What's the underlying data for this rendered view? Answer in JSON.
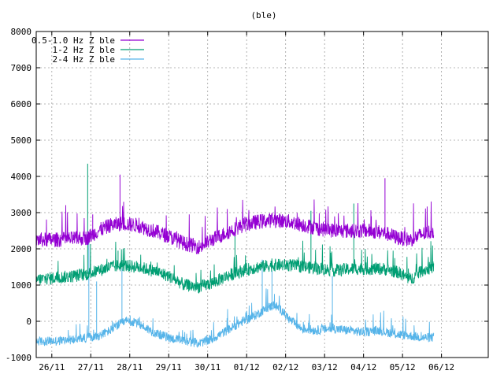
{
  "chart_data": {
    "type": "line",
    "title": "(ble)",
    "xlabel": "",
    "ylabel": "",
    "ylim": [
      -1000,
      8000
    ],
    "yticks": [
      -1000,
      0,
      1000,
      2000,
      3000,
      4000,
      5000,
      6000,
      7000,
      8000
    ],
    "xlim": [
      0,
      11.6
    ],
    "xticks": [
      {
        "label": "26/11",
        "x": 0.4
      },
      {
        "label": "27/11",
        "x": 1.4
      },
      {
        "label": "28/11",
        "x": 2.4
      },
      {
        "label": "29/11",
        "x": 3.4
      },
      {
        "label": "30/11",
        "x": 4.4
      },
      {
        "label": "01/12",
        "x": 5.4
      },
      {
        "label": "02/12",
        "x": 6.4
      },
      {
        "label": "03/12",
        "x": 7.4
      },
      {
        "label": "04/12",
        "x": 8.4
      },
      {
        "label": "05/12",
        "x": 9.4
      },
      {
        "label": "06/12",
        "x": 10.4
      }
    ],
    "grid": true,
    "legend_position": "top-left",
    "series": [
      {
        "name": "0.5-1.0 Hz Z ble",
        "color": "#9400d3",
        "noise": 260,
        "x": [
          0,
          0.5,
          1.0,
          1.3,
          1.6,
          1.9,
          2.2,
          2.6,
          3.0,
          3.4,
          3.8,
          4.2,
          4.5,
          4.9,
          5.3,
          5.7,
          6.1,
          6.5,
          6.9,
          7.3,
          7.7,
          8.1,
          8.5,
          8.9,
          9.3,
          9.6,
          9.9,
          10.2
        ],
        "values": [
          2250,
          2250,
          2280,
          2300,
          2500,
          2650,
          2700,
          2650,
          2500,
          2350,
          2150,
          2050,
          2250,
          2450,
          2650,
          2750,
          2800,
          2750,
          2650,
          2550,
          2500,
          2500,
          2500,
          2450,
          2300,
          2250,
          2400,
          2500
        ],
        "spikes": [
          {
            "x": 1.45,
            "v": 2950
          },
          {
            "x": 2.15,
            "v": 4050
          },
          {
            "x": 8.95,
            "v": 3950
          },
          {
            "x": 8.6,
            "v": 2900
          }
        ]
      },
      {
        "name": "1-2 Hz Z ble",
        "color": "#009e73",
        "noise": 220,
        "x": [
          0,
          0.5,
          1.0,
          1.3,
          1.6,
          1.9,
          2.2,
          2.6,
          3.0,
          3.4,
          3.8,
          4.2,
          4.5,
          4.9,
          5.3,
          5.7,
          6.1,
          6.5,
          6.9,
          7.3,
          7.7,
          8.1,
          8.5,
          8.9,
          9.3,
          9.6,
          9.9,
          10.2
        ],
        "values": [
          1150,
          1200,
          1250,
          1300,
          1400,
          1500,
          1550,
          1500,
          1400,
          1250,
          1000,
          950,
          1050,
          1250,
          1400,
          1500,
          1550,
          1550,
          1500,
          1450,
          1400,
          1450,
          1450,
          1450,
          1350,
          1150,
          1400,
          1500
        ],
        "spikes": [
          {
            "x": 1.32,
            "v": 4350
          },
          {
            "x": 2.1,
            "v": 1950
          },
          {
            "x": 5.1,
            "v": 2500
          },
          {
            "x": 8.15,
            "v": 3250
          },
          {
            "x": 7.05,
            "v": 3050
          }
        ]
      },
      {
        "name": "2-4 Hz Z ble",
        "color": "#56b4e9",
        "noise": 160,
        "x": [
          0,
          0.5,
          1.0,
          1.3,
          1.6,
          1.9,
          2.1,
          2.3,
          2.6,
          3.0,
          3.4,
          3.8,
          4.2,
          4.5,
          4.9,
          5.3,
          5.6,
          5.9,
          6.1,
          6.3,
          6.5,
          6.8,
          7.2,
          7.6,
          8.0,
          8.4,
          8.8,
          9.2,
          9.6,
          9.9,
          10.2
        ],
        "values": [
          -550,
          -550,
          -500,
          -450,
          -400,
          -250,
          -100,
          0,
          -50,
          -300,
          -450,
          -550,
          -600,
          -500,
          -250,
          0,
          150,
          350,
          450,
          300,
          50,
          -200,
          -250,
          -200,
          -250,
          -300,
          -250,
          -350,
          -400,
          -450,
          -450
        ],
        "spikes": [
          {
            "x": 1.35,
            "v": 2250
          },
          {
            "x": 1.55,
            "v": 1100
          },
          {
            "x": 2.2,
            "v": 1450
          },
          {
            "x": 5.8,
            "v": 1700
          },
          {
            "x": 6.05,
            "v": 1400
          },
          {
            "x": 7.6,
            "v": 1250
          }
        ]
      }
    ]
  }
}
